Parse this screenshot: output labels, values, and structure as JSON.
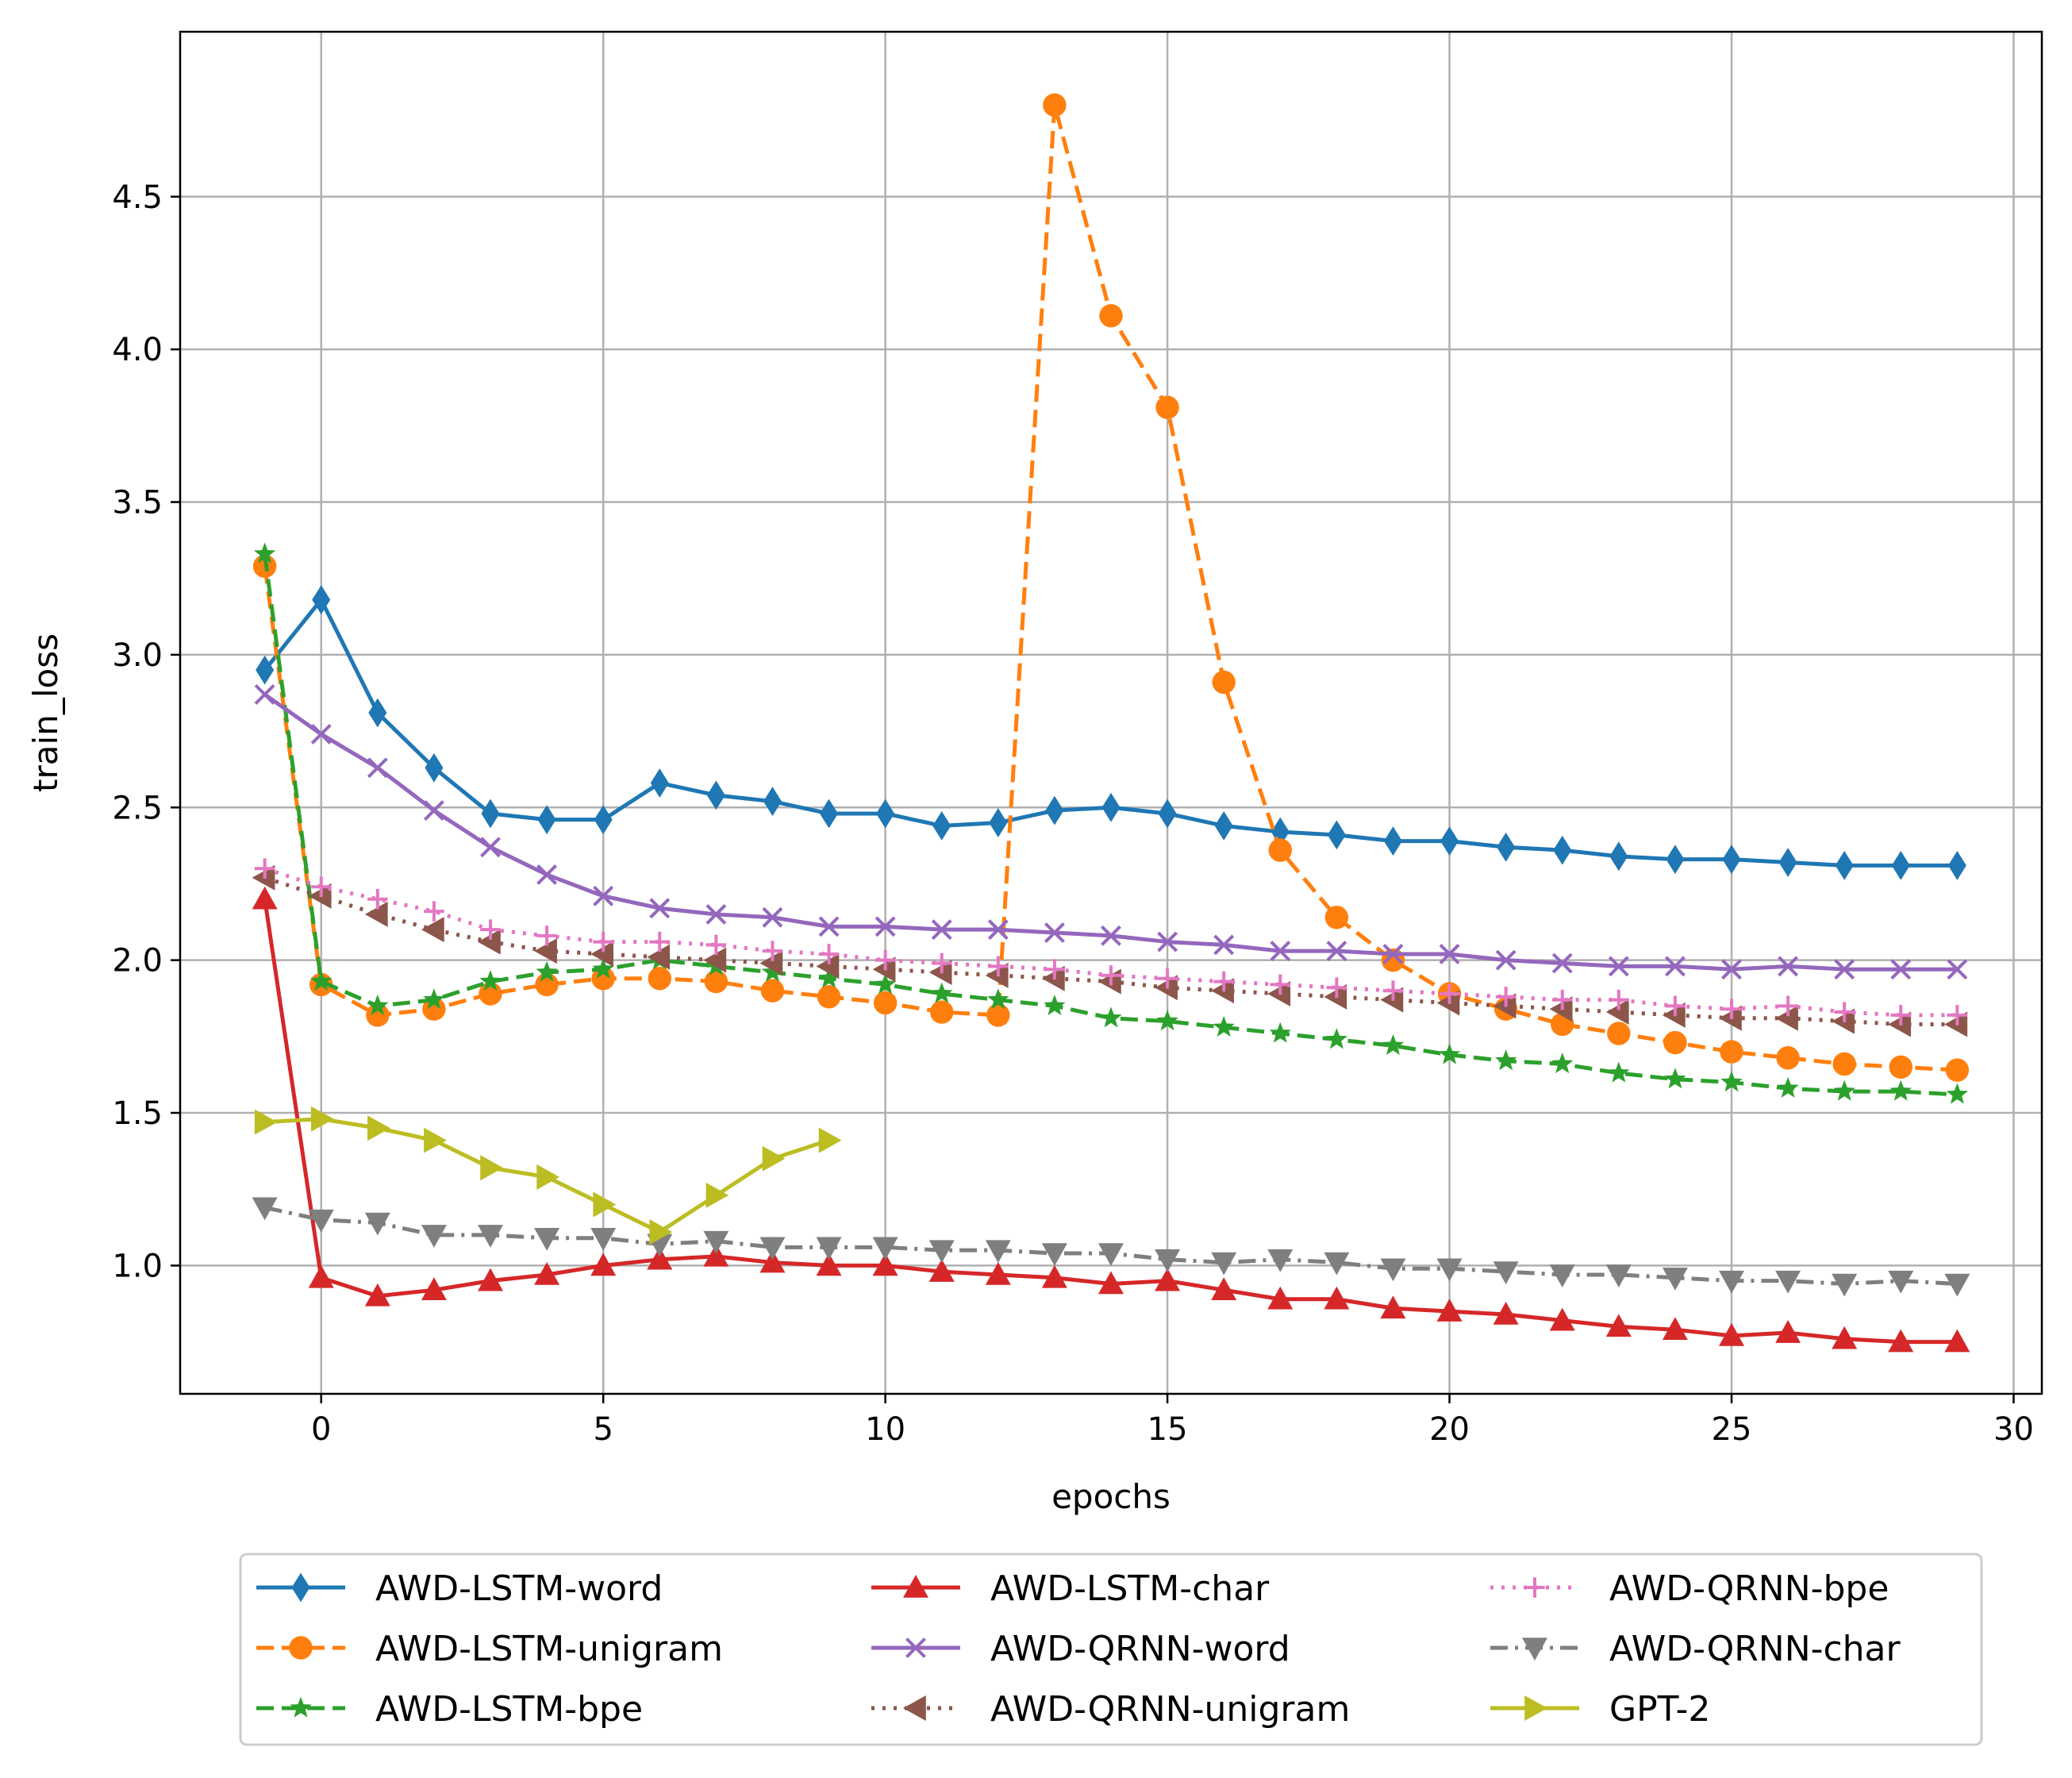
{
  "chart_data": {
    "type": "line",
    "title": "",
    "xlabel": "epochs",
    "ylabel": "train_loss",
    "xlim": [
      -2.5,
      30.5
    ],
    "ylim": [
      0.58,
      5.04
    ],
    "xticks": [
      0,
      5,
      10,
      15,
      20,
      25,
      30
    ],
    "yticks": [
      1.0,
      1.5,
      2.0,
      2.5,
      3.0,
      3.5,
      4.0,
      4.5
    ],
    "xtick_labels": [
      "0",
      "5",
      "10",
      "15",
      "20",
      "25",
      "30"
    ],
    "ytick_labels": [
      "1.0",
      "1.5",
      "2.0",
      "2.5",
      "3.0",
      "3.5",
      "4.0",
      "4.5"
    ],
    "grid": true,
    "legend_position": "bottom-outside, 3 columns",
    "series": [
      {
        "name": "AWD-LSTM-word",
        "color": "#1f77b4",
        "dash": "solid",
        "marker": "diamond",
        "x": [
          -1,
          0,
          1,
          2,
          3,
          4,
          5,
          6,
          7,
          8,
          9,
          10,
          11,
          12,
          13,
          14,
          15,
          16,
          17,
          18,
          19,
          20,
          21,
          22,
          23,
          24,
          25,
          26,
          27,
          28,
          29
        ],
        "y": [
          2.95,
          3.18,
          2.81,
          2.63,
          2.48,
          2.46,
          2.46,
          2.58,
          2.54,
          2.52,
          2.48,
          2.48,
          2.44,
          2.45,
          2.49,
          2.5,
          2.48,
          2.44,
          2.42,
          2.41,
          2.39,
          2.39,
          2.37,
          2.36,
          2.34,
          2.33,
          2.33,
          2.32,
          2.31,
          2.31,
          2.31
        ]
      },
      {
        "name": "AWD-LSTM-unigram",
        "color": "#ff7f0e",
        "dash": "dashed",
        "marker": "circle",
        "x": [
          -1,
          0,
          1,
          2,
          3,
          4,
          5,
          6,
          7,
          8,
          9,
          10,
          11,
          12,
          13,
          14,
          15,
          16,
          17,
          18,
          19,
          20,
          21,
          22,
          23,
          24,
          25,
          26,
          27,
          28,
          29
        ],
        "y": [
          3.29,
          1.92,
          1.82,
          1.84,
          1.89,
          1.92,
          1.94,
          1.94,
          1.93,
          1.9,
          1.88,
          1.86,
          1.83,
          1.82,
          4.8,
          4.11,
          3.81,
          2.91,
          2.36,
          2.14,
          2.0,
          1.89,
          1.84,
          1.79,
          1.76,
          1.73,
          1.7,
          1.68,
          1.66,
          1.65,
          1.64
        ]
      },
      {
        "name": "AWD-LSTM-bpe",
        "color": "#2ca02c",
        "dash": "dashed",
        "marker": "star",
        "x": [
          -1,
          0,
          1,
          2,
          3,
          4,
          5,
          6,
          7,
          8,
          9,
          10,
          11,
          12,
          13,
          14,
          15,
          16,
          17,
          18,
          19,
          20,
          21,
          22,
          23,
          24,
          25,
          26,
          27,
          28,
          29
        ],
        "y": [
          3.33,
          1.93,
          1.85,
          1.87,
          1.93,
          1.96,
          1.97,
          2.0,
          1.98,
          1.96,
          1.94,
          1.92,
          1.89,
          1.87,
          1.85,
          1.81,
          1.8,
          1.78,
          1.76,
          1.74,
          1.72,
          1.69,
          1.67,
          1.66,
          1.63,
          1.61,
          1.6,
          1.58,
          1.57,
          1.57,
          1.56
        ]
      },
      {
        "name": "AWD-LSTM-char",
        "color": "#d62728",
        "dash": "solid",
        "marker": "triangle-up",
        "x": [
          -1,
          0,
          1,
          2,
          3,
          4,
          5,
          6,
          7,
          8,
          9,
          10,
          11,
          12,
          13,
          14,
          15,
          16,
          17,
          18,
          19,
          20,
          21,
          22,
          23,
          24,
          25,
          26,
          27,
          28,
          29
        ],
        "y": [
          2.2,
          0.96,
          0.9,
          0.92,
          0.95,
          0.97,
          1.0,
          1.02,
          1.03,
          1.01,
          1.0,
          1.0,
          0.98,
          0.97,
          0.96,
          0.94,
          0.95,
          0.92,
          0.89,
          0.89,
          0.86,
          0.85,
          0.84,
          0.82,
          0.8,
          0.79,
          0.77,
          0.78,
          0.76,
          0.75,
          0.75
        ]
      },
      {
        "name": "AWD-QRNN-word",
        "color": "#9467bd",
        "dash": "solid",
        "marker": "x",
        "x": [
          -1,
          0,
          1,
          2,
          3,
          4,
          5,
          6,
          7,
          8,
          9,
          10,
          11,
          12,
          13,
          14,
          15,
          16,
          17,
          18,
          19,
          20,
          21,
          22,
          23,
          24,
          25,
          26,
          27,
          28,
          29
        ],
        "y": [
          2.87,
          2.74,
          2.63,
          2.49,
          2.37,
          2.28,
          2.21,
          2.17,
          2.15,
          2.14,
          2.11,
          2.11,
          2.1,
          2.1,
          2.09,
          2.08,
          2.06,
          2.05,
          2.03,
          2.03,
          2.02,
          2.02,
          2.0,
          1.99,
          1.98,
          1.98,
          1.97,
          1.98,
          1.97,
          1.97,
          1.97
        ]
      },
      {
        "name": "AWD-QRNN-unigram",
        "color": "#8c564b",
        "dash": "dotted",
        "marker": "triangle-left",
        "x": [
          -1,
          0,
          1,
          2,
          3,
          4,
          5,
          6,
          7,
          8,
          9,
          10,
          11,
          12,
          13,
          14,
          15,
          16,
          17,
          18,
          19,
          20,
          21,
          22,
          23,
          24,
          25,
          26,
          27,
          28,
          29
        ],
        "y": [
          2.27,
          2.21,
          2.15,
          2.1,
          2.06,
          2.03,
          2.02,
          2.01,
          2.0,
          1.99,
          1.98,
          1.97,
          1.96,
          1.95,
          1.94,
          1.93,
          1.91,
          1.9,
          1.89,
          1.88,
          1.87,
          1.86,
          1.85,
          1.84,
          1.83,
          1.82,
          1.81,
          1.81,
          1.8,
          1.79,
          1.79
        ]
      },
      {
        "name": "AWD-QRNN-bpe",
        "color": "#e377c2",
        "dash": "dotted",
        "marker": "plus",
        "x": [
          -1,
          0,
          1,
          2,
          3,
          4,
          5,
          6,
          7,
          8,
          9,
          10,
          11,
          12,
          13,
          14,
          15,
          16,
          17,
          18,
          19,
          20,
          21,
          22,
          23,
          24,
          25,
          26,
          27,
          28,
          29
        ],
        "y": [
          2.3,
          2.24,
          2.2,
          2.16,
          2.1,
          2.08,
          2.06,
          2.06,
          2.05,
          2.03,
          2.02,
          2.0,
          1.99,
          1.98,
          1.97,
          1.95,
          1.94,
          1.93,
          1.92,
          1.91,
          1.9,
          1.89,
          1.88,
          1.87,
          1.87,
          1.85,
          1.84,
          1.85,
          1.83,
          1.82,
          1.82
        ]
      },
      {
        "name": "AWD-QRNN-char",
        "color": "#7f7f7f",
        "dash": "dashdot",
        "marker": "triangle-down",
        "x": [
          -1,
          0,
          1,
          2,
          3,
          4,
          5,
          6,
          7,
          8,
          9,
          10,
          11,
          12,
          13,
          14,
          15,
          16,
          17,
          18,
          19,
          20,
          21,
          22,
          23,
          24,
          25,
          26,
          27,
          28,
          29
        ],
        "y": [
          1.19,
          1.15,
          1.14,
          1.1,
          1.1,
          1.09,
          1.09,
          1.07,
          1.08,
          1.06,
          1.06,
          1.06,
          1.05,
          1.05,
          1.04,
          1.04,
          1.02,
          1.01,
          1.02,
          1.01,
          0.99,
          0.99,
          0.98,
          0.97,
          0.97,
          0.96,
          0.95,
          0.95,
          0.94,
          0.95,
          0.94
        ]
      },
      {
        "name": "GPT-2",
        "color": "#bcbd22",
        "dash": "solid",
        "marker": "triangle-right",
        "x": [
          -1,
          0,
          1,
          2,
          3,
          4,
          5,
          6,
          7,
          8,
          9
        ],
        "y": [
          1.47,
          1.48,
          1.45,
          1.41,
          1.32,
          1.29,
          1.2,
          1.11,
          1.23,
          1.35,
          1.41
        ]
      }
    ]
  }
}
